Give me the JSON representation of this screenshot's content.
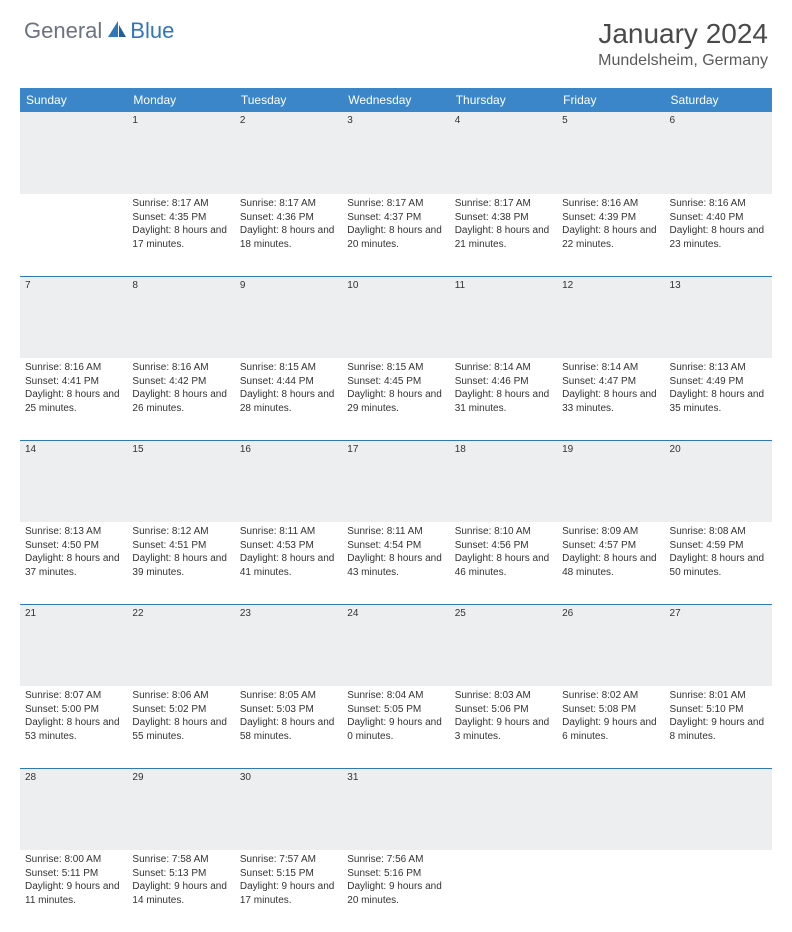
{
  "logo": {
    "general": "General",
    "blue": "Blue"
  },
  "title": "January 2024",
  "location": "Mundelsheim, Germany",
  "colors": {
    "header_bg": "#3b86c8",
    "header_text": "#ffffff",
    "daynum_bg": "#eceef0",
    "row_sep": "#2f76bc",
    "body_text": "#333333",
    "logo_gray": "#6b7280",
    "logo_blue": "#2f76bc",
    "page_bg": "#ffffff"
  },
  "weekdays": [
    "Sunday",
    "Monday",
    "Tuesday",
    "Wednesday",
    "Thursday",
    "Friday",
    "Saturday"
  ],
  "weeks": [
    {
      "nums": [
        "",
        "1",
        "2",
        "3",
        "4",
        "5",
        "6"
      ],
      "cells": [
        {
          "sunrise": "",
          "sunset": "",
          "daylight": ""
        },
        {
          "sunrise": "Sunrise: 8:17 AM",
          "sunset": "Sunset: 4:35 PM",
          "daylight": "Daylight: 8 hours and 17 minutes."
        },
        {
          "sunrise": "Sunrise: 8:17 AM",
          "sunset": "Sunset: 4:36 PM",
          "daylight": "Daylight: 8 hours and 18 minutes."
        },
        {
          "sunrise": "Sunrise: 8:17 AM",
          "sunset": "Sunset: 4:37 PM",
          "daylight": "Daylight: 8 hours and 20 minutes."
        },
        {
          "sunrise": "Sunrise: 8:17 AM",
          "sunset": "Sunset: 4:38 PM",
          "daylight": "Daylight: 8 hours and 21 minutes."
        },
        {
          "sunrise": "Sunrise: 8:16 AM",
          "sunset": "Sunset: 4:39 PM",
          "daylight": "Daylight: 8 hours and 22 minutes."
        },
        {
          "sunrise": "Sunrise: 8:16 AM",
          "sunset": "Sunset: 4:40 PM",
          "daylight": "Daylight: 8 hours and 23 minutes."
        }
      ]
    },
    {
      "nums": [
        "7",
        "8",
        "9",
        "10",
        "11",
        "12",
        "13"
      ],
      "cells": [
        {
          "sunrise": "Sunrise: 8:16 AM",
          "sunset": "Sunset: 4:41 PM",
          "daylight": "Daylight: 8 hours and 25 minutes."
        },
        {
          "sunrise": "Sunrise: 8:16 AM",
          "sunset": "Sunset: 4:42 PM",
          "daylight": "Daylight: 8 hours and 26 minutes."
        },
        {
          "sunrise": "Sunrise: 8:15 AM",
          "sunset": "Sunset: 4:44 PM",
          "daylight": "Daylight: 8 hours and 28 minutes."
        },
        {
          "sunrise": "Sunrise: 8:15 AM",
          "sunset": "Sunset: 4:45 PM",
          "daylight": "Daylight: 8 hours and 29 minutes."
        },
        {
          "sunrise": "Sunrise: 8:14 AM",
          "sunset": "Sunset: 4:46 PM",
          "daylight": "Daylight: 8 hours and 31 minutes."
        },
        {
          "sunrise": "Sunrise: 8:14 AM",
          "sunset": "Sunset: 4:47 PM",
          "daylight": "Daylight: 8 hours and 33 minutes."
        },
        {
          "sunrise": "Sunrise: 8:13 AM",
          "sunset": "Sunset: 4:49 PM",
          "daylight": "Daylight: 8 hours and 35 minutes."
        }
      ]
    },
    {
      "nums": [
        "14",
        "15",
        "16",
        "17",
        "18",
        "19",
        "20"
      ],
      "cells": [
        {
          "sunrise": "Sunrise: 8:13 AM",
          "sunset": "Sunset: 4:50 PM",
          "daylight": "Daylight: 8 hours and 37 minutes."
        },
        {
          "sunrise": "Sunrise: 8:12 AM",
          "sunset": "Sunset: 4:51 PM",
          "daylight": "Daylight: 8 hours and 39 minutes."
        },
        {
          "sunrise": "Sunrise: 8:11 AM",
          "sunset": "Sunset: 4:53 PM",
          "daylight": "Daylight: 8 hours and 41 minutes."
        },
        {
          "sunrise": "Sunrise: 8:11 AM",
          "sunset": "Sunset: 4:54 PM",
          "daylight": "Daylight: 8 hours and 43 minutes."
        },
        {
          "sunrise": "Sunrise: 8:10 AM",
          "sunset": "Sunset: 4:56 PM",
          "daylight": "Daylight: 8 hours and 46 minutes."
        },
        {
          "sunrise": "Sunrise: 8:09 AM",
          "sunset": "Sunset: 4:57 PM",
          "daylight": "Daylight: 8 hours and 48 minutes."
        },
        {
          "sunrise": "Sunrise: 8:08 AM",
          "sunset": "Sunset: 4:59 PM",
          "daylight": "Daylight: 8 hours and 50 minutes."
        }
      ]
    },
    {
      "nums": [
        "21",
        "22",
        "23",
        "24",
        "25",
        "26",
        "27"
      ],
      "cells": [
        {
          "sunrise": "Sunrise: 8:07 AM",
          "sunset": "Sunset: 5:00 PM",
          "daylight": "Daylight: 8 hours and 53 minutes."
        },
        {
          "sunrise": "Sunrise: 8:06 AM",
          "sunset": "Sunset: 5:02 PM",
          "daylight": "Daylight: 8 hours and 55 minutes."
        },
        {
          "sunrise": "Sunrise: 8:05 AM",
          "sunset": "Sunset: 5:03 PM",
          "daylight": "Daylight: 8 hours and 58 minutes."
        },
        {
          "sunrise": "Sunrise: 8:04 AM",
          "sunset": "Sunset: 5:05 PM",
          "daylight": "Daylight: 9 hours and 0 minutes."
        },
        {
          "sunrise": "Sunrise: 8:03 AM",
          "sunset": "Sunset: 5:06 PM",
          "daylight": "Daylight: 9 hours and 3 minutes."
        },
        {
          "sunrise": "Sunrise: 8:02 AM",
          "sunset": "Sunset: 5:08 PM",
          "daylight": "Daylight: 9 hours and 6 minutes."
        },
        {
          "sunrise": "Sunrise: 8:01 AM",
          "sunset": "Sunset: 5:10 PM",
          "daylight": "Daylight: 9 hours and 8 minutes."
        }
      ]
    },
    {
      "nums": [
        "28",
        "29",
        "30",
        "31",
        "",
        "",
        ""
      ],
      "cells": [
        {
          "sunrise": "Sunrise: 8:00 AM",
          "sunset": "Sunset: 5:11 PM",
          "daylight": "Daylight: 9 hours and 11 minutes."
        },
        {
          "sunrise": "Sunrise: 7:58 AM",
          "sunset": "Sunset: 5:13 PM",
          "daylight": "Daylight: 9 hours and 14 minutes."
        },
        {
          "sunrise": "Sunrise: 7:57 AM",
          "sunset": "Sunset: 5:15 PM",
          "daylight": "Daylight: 9 hours and 17 minutes."
        },
        {
          "sunrise": "Sunrise: 7:56 AM",
          "sunset": "Sunset: 5:16 PM",
          "daylight": "Daylight: 9 hours and 20 minutes."
        },
        {
          "sunrise": "",
          "sunset": "",
          "daylight": ""
        },
        {
          "sunrise": "",
          "sunset": "",
          "daylight": ""
        },
        {
          "sunrise": "",
          "sunset": "",
          "daylight": ""
        }
      ]
    }
  ]
}
